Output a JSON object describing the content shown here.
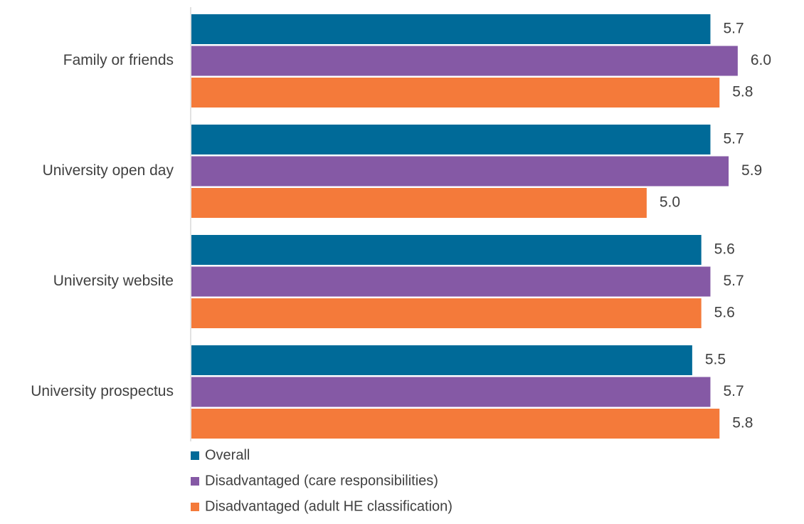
{
  "chart_data": {
    "type": "bar",
    "orientation": "horizontal",
    "categories": [
      "Family or friends",
      "University open day",
      "University website",
      "University prospectus"
    ],
    "series": [
      {
        "name": "Overall",
        "color": "#006A98",
        "values": [
          5.7,
          5.7,
          5.6,
          5.5
        ]
      },
      {
        "name": "Disadvantaged (care responsibilities)",
        "color": "#8559A5",
        "values": [
          6.0,
          5.9,
          5.7,
          5.7
        ]
      },
      {
        "name": "Disadvantaged (adult HE classification)",
        "color": "#F47A3A",
        "values": [
          5.8,
          5.0,
          5.6,
          5.8
        ]
      }
    ],
    "title": "",
    "xlabel": "",
    "ylabel": "",
    "xlim": [
      0,
      6.72
    ],
    "grid": false,
    "legend": "bottom-left",
    "value_format": "0.0"
  }
}
